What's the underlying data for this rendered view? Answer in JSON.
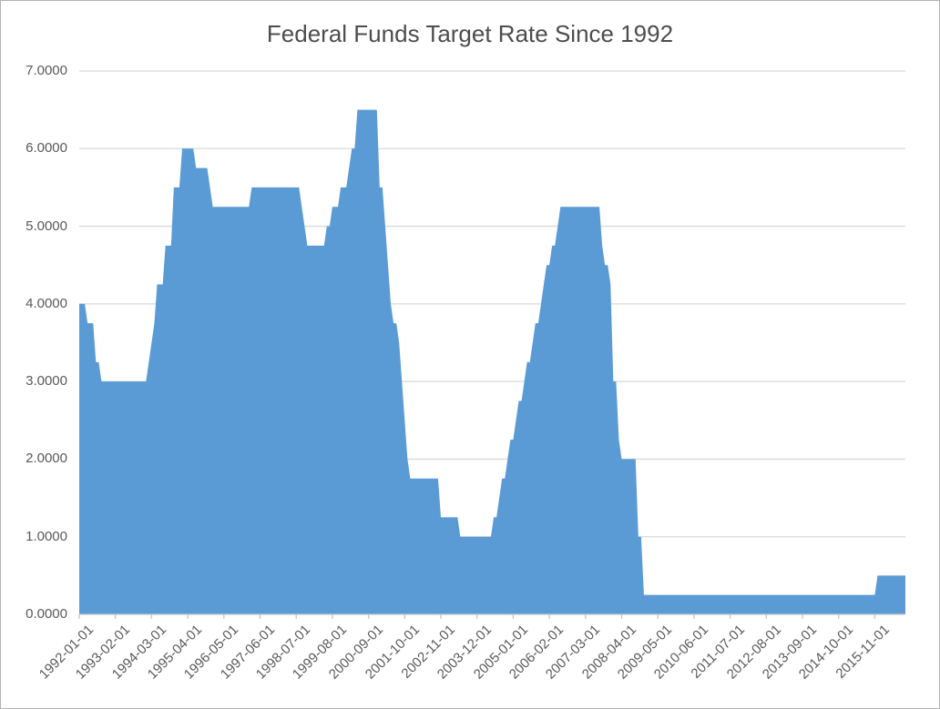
{
  "title": "Federal Funds Target Rate Since 1992",
  "colors": {
    "area": "#5B9BD5",
    "gridline": "#D9D9D9",
    "axis_line": "#C6C6C6",
    "tick": "#C6C6C6",
    "label_text": "#595959",
    "title_text": "#4D4D4D",
    "background": "#FFFFFF"
  },
  "chart_data": {
    "type": "area",
    "title": "Federal Funds Target Rate Since 1992",
    "xlabel": "",
    "ylabel": "",
    "x_start": "1992-01-01",
    "x_freq": "monthly",
    "x_tick_interval_months": 13,
    "x_tick_labels": [
      "1992-01-01",
      "1993-02-01",
      "1994-03-01",
      "1995-04-01",
      "1996-05-01",
      "1997-06-01",
      "1998-07-01",
      "1999-08-01",
      "2000-09-01",
      "2001-10-01",
      "2002-11-01",
      "2003-12-01",
      "2005-01-01",
      "2006-02-01",
      "2007-03-01",
      "2008-04-01",
      "2009-05-01",
      "2010-06-01",
      "2011-07-01",
      "2012-08-01",
      "2013-09-01",
      "2014-10-01",
      "2015-11-01"
    ],
    "y_tick_labels": [
      "7.0000",
      "6.0000",
      "5.0000",
      "4.0000",
      "3.0000",
      "2.0000",
      "1.0000",
      "0.0000"
    ],
    "ylim": [
      0,
      7
    ],
    "grid": "horizontal",
    "legend": "none",
    "values": [
      4,
      4,
      4,
      3.75,
      3.75,
      3.75,
      3.25,
      3.25,
      3,
      3,
      3,
      3,
      3,
      3,
      3,
      3,
      3,
      3,
      3,
      3,
      3,
      3,
      3,
      3,
      3,
      3.25,
      3.5,
      3.75,
      4.25,
      4.25,
      4.25,
      4.75,
      4.75,
      4.75,
      5.5,
      5.5,
      5.5,
      6,
      6,
      6,
      6,
      6,
      5.75,
      5.75,
      5.75,
      5.75,
      5.75,
      5.5,
      5.25,
      5.25,
      5.25,
      5.25,
      5.25,
      5.25,
      5.25,
      5.25,
      5.25,
      5.25,
      5.25,
      5.25,
      5.25,
      5.25,
      5.5,
      5.5,
      5.5,
      5.5,
      5.5,
      5.5,
      5.5,
      5.5,
      5.5,
      5.5,
      5.5,
      5.5,
      5.5,
      5.5,
      5.5,
      5.5,
      5.5,
      5.5,
      5.25,
      5,
      4.75,
      4.75,
      4.75,
      4.75,
      4.75,
      4.75,
      4.75,
      5,
      5,
      5.25,
      5.25,
      5.25,
      5.5,
      5.5,
      5.5,
      5.75,
      6,
      6,
      6.5,
      6.5,
      6.5,
      6.5,
      6.5,
      6.5,
      6.5,
      6.5,
      5.5,
      5.5,
      5,
      4.5,
      4,
      3.75,
      3.75,
      3.5,
      3,
      2.5,
      2,
      1.75,
      1.75,
      1.75,
      1.75,
      1.75,
      1.75,
      1.75,
      1.75,
      1.75,
      1.75,
      1.75,
      1.25,
      1.25,
      1.25,
      1.25,
      1.25,
      1.25,
      1.25,
      1,
      1,
      1,
      1,
      1,
      1,
      1,
      1,
      1,
      1,
      1,
      1,
      1.25,
      1.25,
      1.5,
      1.75,
      1.75,
      2,
      2.25,
      2.25,
      2.5,
      2.75,
      2.75,
      3,
      3.25,
      3.25,
      3.5,
      3.75,
      3.75,
      4,
      4.25,
      4.5,
      4.5,
      4.75,
      4.75,
      5,
      5.25,
      5.25,
      5.25,
      5.25,
      5.25,
      5.25,
      5.25,
      5.25,
      5.25,
      5.25,
      5.25,
      5.25,
      5.25,
      5.25,
      5.25,
      4.75,
      4.5,
      4.5,
      4.25,
      3,
      3,
      2.25,
      2,
      2,
      2,
      2,
      2,
      2,
      1,
      1,
      0.25,
      0.25,
      0.25,
      0.25,
      0.25,
      0.25,
      0.25,
      0.25,
      0.25,
      0.25,
      0.25,
      0.25,
      0.25,
      0.25,
      0.25,
      0.25,
      0.25,
      0.25,
      0.25,
      0.25,
      0.25,
      0.25,
      0.25,
      0.25,
      0.25,
      0.25,
      0.25,
      0.25,
      0.25,
      0.25,
      0.25,
      0.25,
      0.25,
      0.25,
      0.25,
      0.25,
      0.25,
      0.25,
      0.25,
      0.25,
      0.25,
      0.25,
      0.25,
      0.25,
      0.25,
      0.25,
      0.25,
      0.25,
      0.25,
      0.25,
      0.25,
      0.25,
      0.25,
      0.25,
      0.25,
      0.25,
      0.25,
      0.25,
      0.25,
      0.25,
      0.25,
      0.25,
      0.25,
      0.25,
      0.25,
      0.25,
      0.25,
      0.25,
      0.25,
      0.25,
      0.25,
      0.25,
      0.25,
      0.25,
      0.25,
      0.25,
      0.25,
      0.25,
      0.25,
      0.25,
      0.25,
      0.25,
      0.25,
      0.25,
      0.5,
      0.5,
      0.5,
      0.5,
      0.5,
      0.5,
      0.5,
      0.5,
      0.5,
      0.5,
      0.5
    ]
  }
}
